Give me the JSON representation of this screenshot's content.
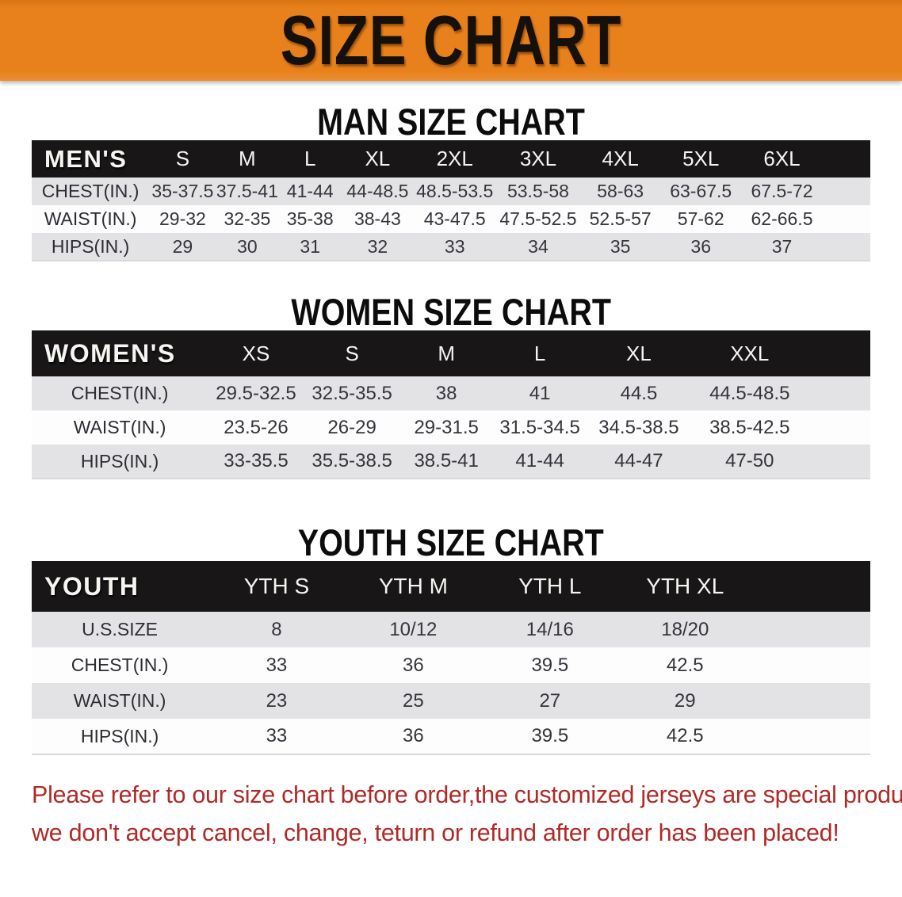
{
  "banner": {
    "title": "SIZE CHART"
  },
  "headings": {
    "men": "MAN SIZE CHART",
    "women": "WOMEN SIZE CHART",
    "youth": "YOUTH SIZE CHART"
  },
  "tables": {
    "men": {
      "label": "MEN'S",
      "columns": [
        "S",
        "M",
        "L",
        "XL",
        "2XL",
        "3XL",
        "4XL",
        "5XL",
        "6XL"
      ],
      "rows": [
        {
          "label": "CHEST(IN.)",
          "values": [
            "35-37.5",
            "37.5-41",
            "41-44",
            "44-48.5",
            "48.5-53.5",
            "53.5-58",
            "58-63",
            "63-67.5",
            "67.5-72"
          ]
        },
        {
          "label": "WAIST(IN.)",
          "values": [
            "29-32",
            "32-35",
            "35-38",
            "38-43",
            "43-47.5",
            "47.5-52.5",
            "52.5-57",
            "57-62",
            "62-66.5"
          ]
        },
        {
          "label": "HIPS(IN.)",
          "values": [
            "29",
            "30",
            "31",
            "32",
            "33",
            "34",
            "35",
            "36",
            "37"
          ]
        }
      ]
    },
    "women": {
      "label": "WOMEN'S",
      "columns": [
        "XS",
        "S",
        "M",
        "L",
        "XL",
        "XXL"
      ],
      "rows": [
        {
          "label": "CHEST(IN.)",
          "values": [
            "29.5-32.5",
            "32.5-35.5",
            "38",
            "41",
            "44.5",
            "44.5-48.5"
          ]
        },
        {
          "label": "WAIST(IN.)",
          "values": [
            "23.5-26",
            "26-29",
            "29-31.5",
            "31.5-34.5",
            "34.5-38.5",
            "38.5-42.5"
          ]
        },
        {
          "label": "HIPS(IN.)",
          "values": [
            "33-35.5",
            "35.5-38.5",
            "38.5-41",
            "41-44",
            "44-47",
            "47-50"
          ]
        }
      ]
    },
    "youth": {
      "label": "YOUTH",
      "columns": [
        "YTH S",
        "YTH M",
        "YTH L",
        "YTH XL"
      ],
      "rows": [
        {
          "label": "U.S.SIZE",
          "values": [
            "8",
            "10/12",
            "14/16",
            "18/20"
          ]
        },
        {
          "label": "CHEST(IN.)",
          "values": [
            "33",
            "36",
            "39.5",
            "42.5"
          ]
        },
        {
          "label": "WAIST(IN.)",
          "values": [
            "23",
            "25",
            "27",
            "29"
          ]
        },
        {
          "label": "HIPS(IN.)",
          "values": [
            "33",
            "36",
            "39.5",
            "42.5"
          ]
        }
      ]
    }
  },
  "notice": {
    "line1": "Please refer to our size chart before order,the customized jerseys are special products,",
    "line2": "we don't accept cancel, change, teturn or refund after order has been placed!"
  },
  "colors": {
    "banner_orange": "#e8811c",
    "header_bar_black": "#181617",
    "row_gray": "#e3e3e6",
    "notice_red": "#b02a28"
  }
}
